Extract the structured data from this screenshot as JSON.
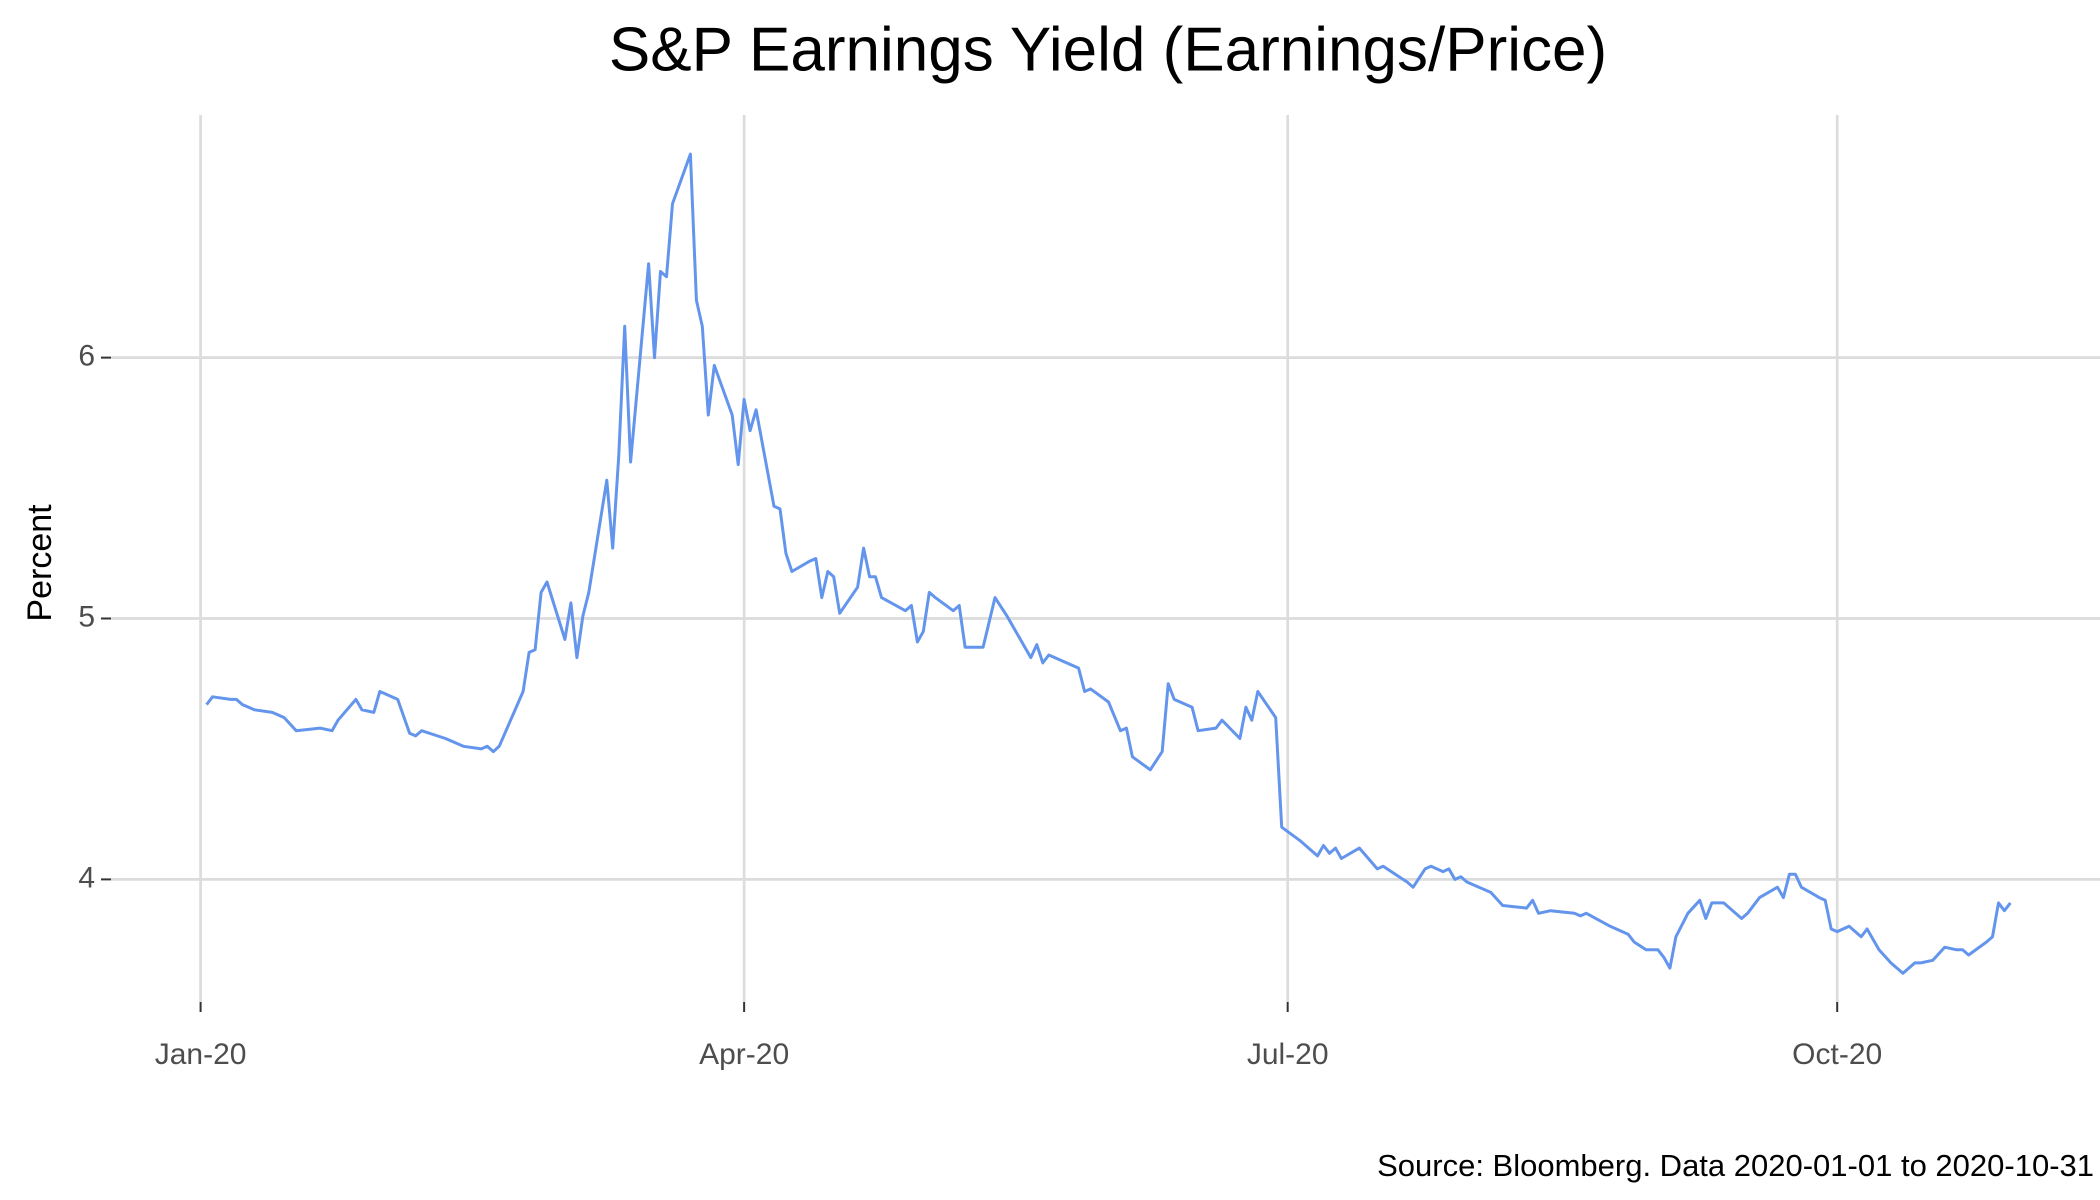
{
  "chart_data": {
    "type": "line",
    "title": "S&P Earnings Yield (Earnings/Price)",
    "y_label": "Percent",
    "source": "Source: Bloomberg. Data 2020-01-01 to 2020-10-31",
    "color": "#6495ed",
    "grid": true,
    "xlim": [
      "2019-12-17",
      "2020-11-14"
    ],
    "xticks": [
      {
        "value": "2020-01-01",
        "label": "Jan-20"
      },
      {
        "value": "2020-04-01",
        "label": "Apr-20"
      },
      {
        "value": "2020-07-01",
        "label": "Jul-20"
      },
      {
        "value": "2020-10-01",
        "label": "Oct-20"
      }
    ],
    "ylim": [
      3.53,
      6.93
    ],
    "yticks": [
      4,
      5,
      6
    ],
    "x": [
      "2020-01-02",
      "2020-01-03",
      "2020-01-06",
      "2020-01-07",
      "2020-01-08",
      "2020-01-10",
      "2020-01-13",
      "2020-01-15",
      "2020-01-17",
      "2020-01-21",
      "2020-01-23",
      "2020-01-24",
      "2020-01-27",
      "2020-01-28",
      "2020-01-30",
      "2020-01-31",
      "2020-02-03",
      "2020-02-05",
      "2020-02-06",
      "2020-02-07",
      "2020-02-11",
      "2020-02-14",
      "2020-02-17",
      "2020-02-18",
      "2020-02-19",
      "2020-02-20",
      "2020-02-24",
      "2020-02-25",
      "2020-02-26",
      "2020-02-27",
      "2020-02-28",
      "2020-03-02",
      "2020-03-03",
      "2020-03-04",
      "2020-03-05",
      "2020-03-06",
      "2020-03-09",
      "2020-03-10",
      "2020-03-11",
      "2020-03-12",
      "2020-03-13",
      "2020-03-16",
      "2020-03-17",
      "2020-03-18",
      "2020-03-19",
      "2020-03-20",
      "2020-03-23",
      "2020-03-24",
      "2020-03-25",
      "2020-03-26",
      "2020-03-27",
      "2020-03-30",
      "2020-03-31",
      "2020-04-01",
      "2020-04-02",
      "2020-04-03",
      "2020-04-06",
      "2020-04-07",
      "2020-04-08",
      "2020-04-09",
      "2020-04-12",
      "2020-04-13",
      "2020-04-14",
      "2020-04-15",
      "2020-04-16",
      "2020-04-17",
      "2020-04-20",
      "2020-04-21",
      "2020-04-22",
      "2020-04-23",
      "2020-04-24",
      "2020-04-28",
      "2020-04-29",
      "2020-04-30",
      "2020-05-01",
      "2020-05-02",
      "2020-05-03",
      "2020-05-06",
      "2020-05-07",
      "2020-05-08",
      "2020-05-11",
      "2020-05-13",
      "2020-05-15",
      "2020-05-19",
      "2020-05-20",
      "2020-05-21",
      "2020-05-22",
      "2020-05-27",
      "2020-05-28",
      "2020-05-29",
      "2020-06-01",
      "2020-06-03",
      "2020-06-04",
      "2020-06-05",
      "2020-06-08",
      "2020-06-10",
      "2020-06-11",
      "2020-06-12",
      "2020-06-15",
      "2020-06-16",
      "2020-06-19",
      "2020-06-20",
      "2020-06-23",
      "2020-06-24",
      "2020-06-25",
      "2020-06-26",
      "2020-06-29",
      "2020-06-30",
      "2020-07-03",
      "2020-07-06",
      "2020-07-07",
      "2020-07-08",
      "2020-07-09",
      "2020-07-10",
      "2020-07-13",
      "2020-07-16",
      "2020-07-17",
      "2020-07-21",
      "2020-07-22",
      "2020-07-24",
      "2020-07-25",
      "2020-07-27",
      "2020-07-28",
      "2020-07-29",
      "2020-07-30",
      "2020-07-31",
      "2020-08-04",
      "2020-08-06",
      "2020-08-10",
      "2020-08-11",
      "2020-08-12",
      "2020-08-14",
      "2020-08-18",
      "2020-08-19",
      "2020-08-20",
      "2020-08-24",
      "2020-08-27",
      "2020-08-28",
      "2020-08-30",
      "2020-09-01",
      "2020-09-02",
      "2020-09-03",
      "2020-09-04",
      "2020-09-06",
      "2020-09-08",
      "2020-09-09",
      "2020-09-10",
      "2020-09-12",
      "2020-09-15",
      "2020-09-16",
      "2020-09-18",
      "2020-09-21",
      "2020-09-22",
      "2020-09-23",
      "2020-09-24",
      "2020-09-25",
      "2020-09-28",
      "2020-09-29",
      "2020-09-30",
      "2020-10-01",
      "2020-10-03",
      "2020-10-05",
      "2020-10-06",
      "2020-10-08",
      "2020-10-10",
      "2020-10-12",
      "2020-10-14",
      "2020-10-15",
      "2020-10-17",
      "2020-10-19",
      "2020-10-21",
      "2020-10-22",
      "2020-10-23",
      "2020-10-26",
      "2020-10-27",
      "2020-10-28",
      "2020-10-29",
      "2020-10-30"
    ],
    "values": [
      4.67,
      4.7,
      4.69,
      4.69,
      4.67,
      4.65,
      4.64,
      4.62,
      4.57,
      4.58,
      4.57,
      4.61,
      4.69,
      4.65,
      4.64,
      4.72,
      4.69,
      4.56,
      4.55,
      4.57,
      4.54,
      4.51,
      4.5,
      4.51,
      4.49,
      4.51,
      4.72,
      4.87,
      4.88,
      5.1,
      5.14,
      4.92,
      5.06,
      4.85,
      5.01,
      5.1,
      5.53,
      5.27,
      5.62,
      6.12,
      5.6,
      6.36,
      6.0,
      6.33,
      6.31,
      6.59,
      6.78,
      6.22,
      6.12,
      5.78,
      5.97,
      5.78,
      5.59,
      5.84,
      5.72,
      5.8,
      5.43,
      5.42,
      5.25,
      5.18,
      5.22,
      5.23,
      5.08,
      5.18,
      5.16,
      5.02,
      5.12,
      5.27,
      5.16,
      5.16,
      5.08,
      5.03,
      5.05,
      4.91,
      4.95,
      5.1,
      5.08,
      5.03,
      5.05,
      4.89,
      4.89,
      5.08,
      5.01,
      4.85,
      4.9,
      4.83,
      4.86,
      4.81,
      4.72,
      4.73,
      4.68,
      4.57,
      4.58,
      4.47,
      4.42,
      4.49,
      4.75,
      4.69,
      4.66,
      4.57,
      4.58,
      4.61,
      4.54,
      4.66,
      4.61,
      4.72,
      4.62,
      4.2,
      4.15,
      4.09,
      4.13,
      4.1,
      4.12,
      4.08,
      4.12,
      4.04,
      4.05,
      3.99,
      3.97,
      4.04,
      4.05,
      4.03,
      4.04,
      4.0,
      4.01,
      3.99,
      3.95,
      3.9,
      3.89,
      3.92,
      3.87,
      3.88,
      3.87,
      3.86,
      3.87,
      3.82,
      3.79,
      3.76,
      3.73,
      3.73,
      3.7,
      3.66,
      3.78,
      3.87,
      3.92,
      3.85,
      3.91,
      3.91,
      3.85,
      3.87,
      3.93,
      3.97,
      3.93,
      4.02,
      4.02,
      3.97,
      3.93,
      3.92,
      3.81,
      3.8,
      3.82,
      3.78,
      3.81,
      3.73,
      3.68,
      3.64,
      3.68,
      3.68,
      3.69,
      3.74,
      3.73,
      3.73,
      3.71,
      3.76,
      3.78,
      3.91,
      3.88,
      3.91
    ]
  }
}
